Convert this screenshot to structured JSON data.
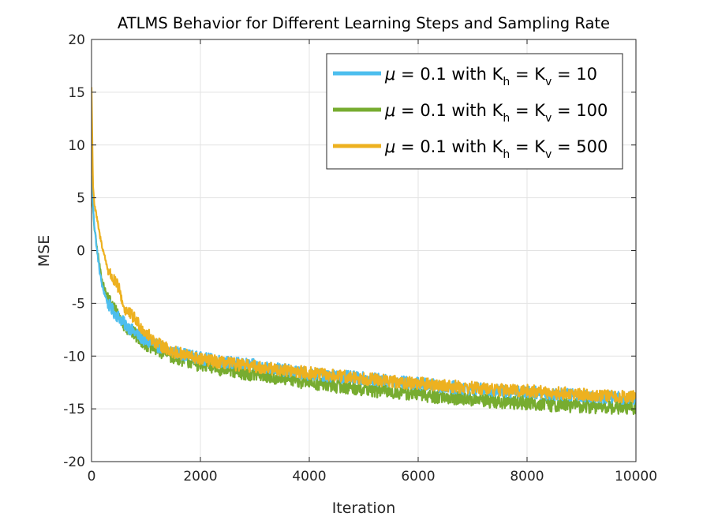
{
  "chart_data": {
    "type": "line",
    "title": "ATLMS Behavior for Different Learning Steps and Sampling Rate",
    "xlabel": "Iteration",
    "ylabel": "MSE",
    "xlim": [
      0,
      10000
    ],
    "ylim": [
      -20,
      20
    ],
    "xticks": [
      0,
      2000,
      4000,
      6000,
      8000,
      10000
    ],
    "yticks": [
      20,
      15,
      10,
      5,
      0,
      -5,
      -10,
      -15,
      -20
    ],
    "xtick_labels": [
      "0",
      "2000",
      "4000",
      "6000",
      "8000",
      "10000"
    ],
    "ytick_labels": [
      "20",
      "15",
      "10",
      "5",
      "0",
      "-5",
      "-10",
      "-15",
      "-20"
    ],
    "grid": true,
    "legend_position": "top-right",
    "x": [
      0,
      25,
      50,
      100,
      150,
      200,
      300,
      400,
      500,
      600,
      800,
      1000,
      1200,
      1500,
      2000,
      2500,
      3000,
      3500,
      4000,
      4500,
      5000,
      5500,
      6000,
      6500,
      7000,
      7500,
      8000,
      8500,
      9000,
      9500,
      10000
    ],
    "series": [
      {
        "name": "μ = 0.1 with Kh = Kv = 10",
        "mu": "μ",
        "label_mid": " = 0.1 with K",
        "sub1": "h",
        "label_eq": " = K",
        "sub2": "v",
        "label_end": " = 10",
        "color": "#4DBEEE",
        "noise": 0.6,
        "values": [
          7,
          4.5,
          2.5,
          0,
          -2,
          -3.5,
          -5,
          -5.8,
          -6.3,
          -6.9,
          -7.8,
          -8.6,
          -9,
          -9.6,
          -10.2,
          -10.6,
          -10.9,
          -11.3,
          -11.7,
          -11.9,
          -12.1,
          -12.4,
          -12.6,
          -12.9,
          -13.1,
          -13.3,
          -13.4,
          -13.6,
          -13.7,
          -13.9,
          -14
        ]
      },
      {
        "name": "μ = 0.1 with Kh = Kv = 100",
        "mu": "μ",
        "label_mid": " = 0.1 with K",
        "sub1": "h",
        "label_eq": " = K",
        "sub2": "v",
        "label_end": " = 100",
        "color": "#77AC30",
        "noise": 0.7,
        "values": [
          6.5,
          4,
          2.3,
          0.2,
          -1.5,
          -3,
          -4.5,
          -5.4,
          -6.2,
          -7,
          -8,
          -8.8,
          -9.4,
          -10,
          -10.8,
          -11.3,
          -11.7,
          -12.1,
          -12.5,
          -12.8,
          -13.1,
          -13.4,
          -13.6,
          -13.9,
          -14.1,
          -14.3,
          -14.4,
          -14.6,
          -14.7,
          -14.8,
          -14.9
        ]
      },
      {
        "name": "μ = 0.1 with Kh = Kv = 500",
        "mu": "μ",
        "label_mid": " = 0.1 with K",
        "sub1": "h",
        "label_eq": " = K",
        "sub2": "v",
        "label_end": " = 500",
        "color": "#EDB120",
        "noise": 0.6,
        "values": [
          15.5,
          6.5,
          4.5,
          3,
          1.5,
          0.3,
          -1.8,
          -2.8,
          -3.5,
          -5.5,
          -6.5,
          -7.8,
          -8.8,
          -9.6,
          -10.3,
          -10.7,
          -11,
          -11.3,
          -11.6,
          -11.9,
          -12.1,
          -12.4,
          -12.6,
          -12.8,
          -13,
          -13.2,
          -13.3,
          -13.5,
          -13.6,
          -13.8,
          -13.9
        ]
      }
    ]
  }
}
